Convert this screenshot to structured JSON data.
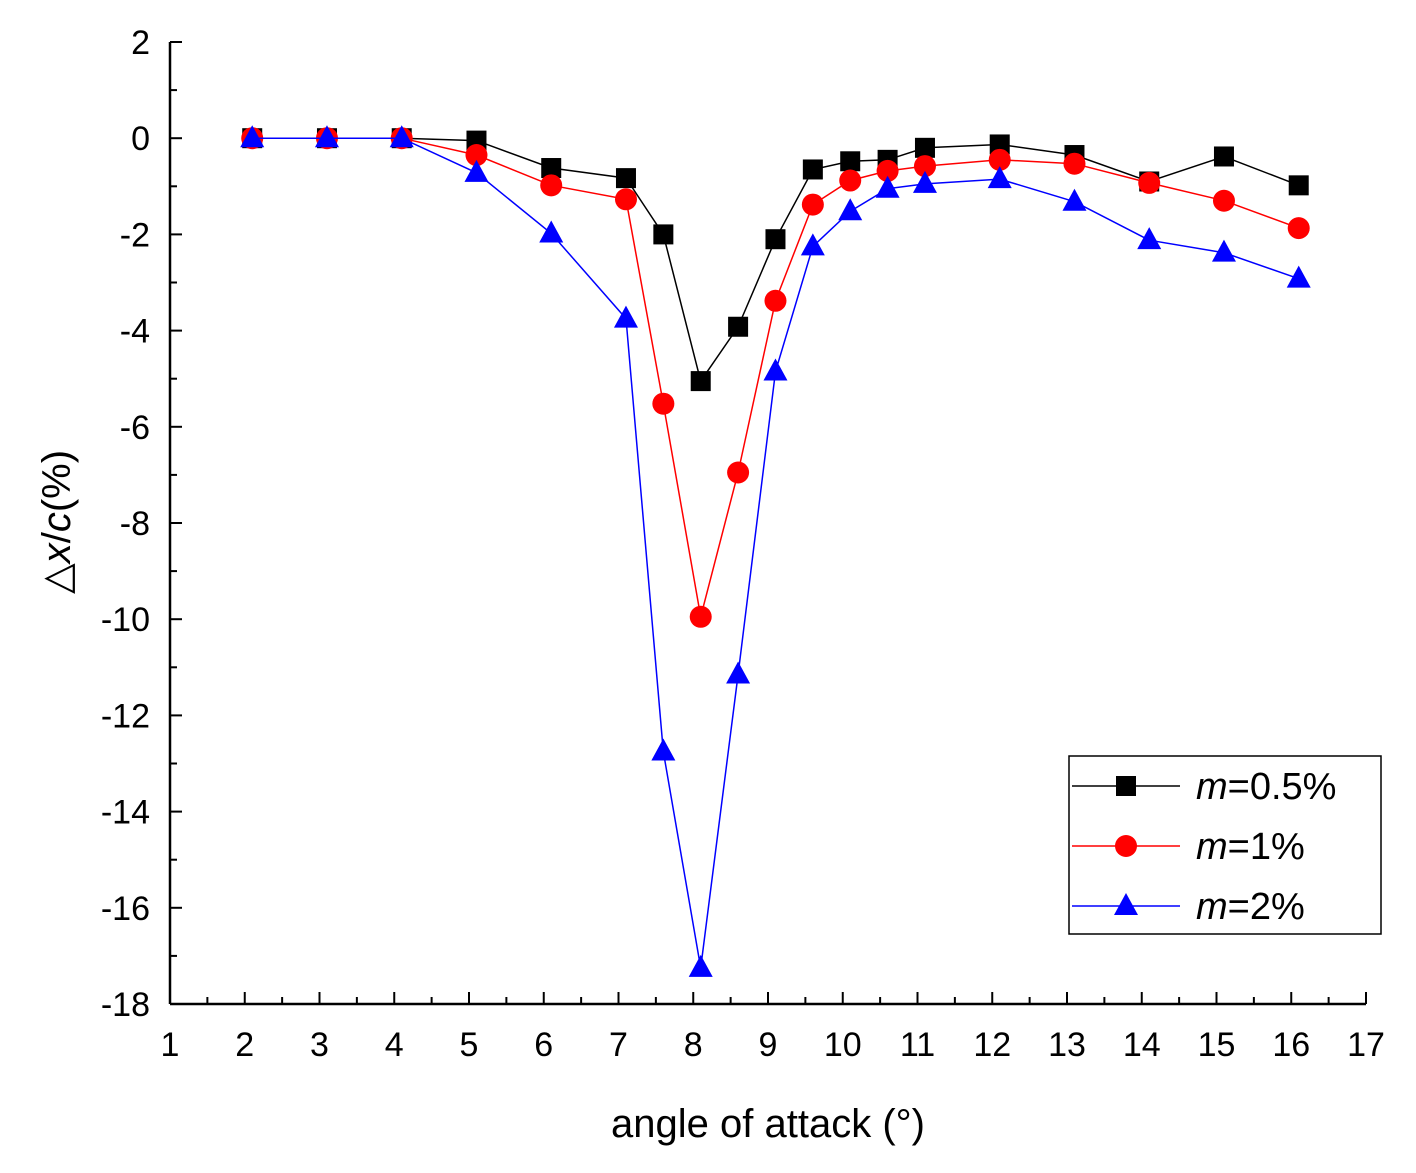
{
  "chart_data": {
    "type": "line",
    "title": "",
    "xlabel": "angle of attack (°)",
    "ylabel": "△x/c(%)",
    "ylabel_parts": {
      "prefix": "△",
      "x": "x",
      "slash": "/",
      "c": "c",
      "suffix": "(%)"
    },
    "xlim": [
      1,
      17
    ],
    "ylim": [
      -18,
      2
    ],
    "xticks": [
      "1",
      "2",
      "3",
      "4",
      "5",
      "6",
      "7",
      "8",
      "9",
      "10",
      "11",
      "12",
      "13",
      "14",
      "15",
      "16",
      "17"
    ],
    "yticks": [
      "2",
      "0",
      "-2",
      "-4",
      "-6",
      "-8",
      "-10",
      "-12",
      "-14",
      "-16",
      "-18"
    ],
    "legend_position": "bottom-right",
    "series": [
      {
        "name": "m=0.5%",
        "name_var": "m",
        "name_rest": "=0.5%",
        "color": "#000000",
        "marker": "square",
        "x": [
          2.1,
          3.1,
          4.1,
          5.1,
          6.1,
          7.1,
          7.6,
          8.1,
          8.6,
          9.1,
          9.6,
          10.1,
          10.6,
          11.1,
          12.1,
          13.1,
          14.1,
          15.1,
          16.1
        ],
        "y": [
          0,
          0,
          0,
          -0.05,
          -0.62,
          -0.83,
          -2.0,
          -5.05,
          -3.92,
          -2.1,
          -0.65,
          -0.48,
          -0.45,
          -0.2,
          -0.13,
          -0.35,
          -0.9,
          -0.38,
          -0.98
        ]
      },
      {
        "name": "m=1%",
        "name_var": "m",
        "name_rest": "=1%",
        "color": "#ff0000",
        "marker": "circle",
        "x": [
          2.1,
          3.1,
          4.1,
          5.1,
          6.1,
          7.1,
          7.6,
          8.1,
          8.6,
          9.1,
          9.6,
          10.1,
          10.6,
          11.1,
          12.1,
          13.1,
          14.1,
          15.1,
          16.1
        ],
        "y": [
          0,
          0,
          0,
          -0.35,
          -0.98,
          -1.27,
          -5.52,
          -9.95,
          -6.95,
          -3.38,
          -1.38,
          -0.88,
          -0.68,
          -0.58,
          -0.45,
          -0.53,
          -0.93,
          -1.3,
          -1.87
        ]
      },
      {
        "name": "m=2%",
        "name_var": "m",
        "name_rest": "=2%",
        "color": "#0000ff",
        "marker": "triangle",
        "x": [
          2.1,
          3.1,
          4.1,
          5.1,
          6.1,
          7.1,
          7.6,
          8.1,
          8.6,
          9.1,
          9.6,
          10.1,
          10.6,
          11.1,
          12.1,
          13.1,
          14.1,
          15.1,
          16.1
        ],
        "y": [
          0,
          0,
          0,
          -0.72,
          -1.98,
          -3.75,
          -12.75,
          -17.25,
          -11.15,
          -4.85,
          -2.25,
          -1.52,
          -1.05,
          -0.95,
          -0.85,
          -1.32,
          -2.12,
          -2.38,
          -2.92
        ]
      }
    ]
  }
}
